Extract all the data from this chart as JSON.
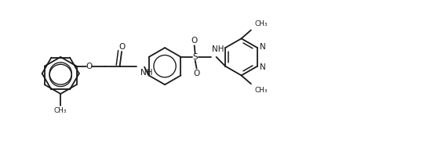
{
  "bg_color": "#ffffff",
  "line_color": "#1a1a1a",
  "line_width": 1.3,
  "font_size": 7.5,
  "fig_width": 5.62,
  "fig_height": 1.88,
  "dpi": 100,
  "xlim": [
    0,
    11
  ],
  "ylim": [
    0,
    3.8
  ]
}
